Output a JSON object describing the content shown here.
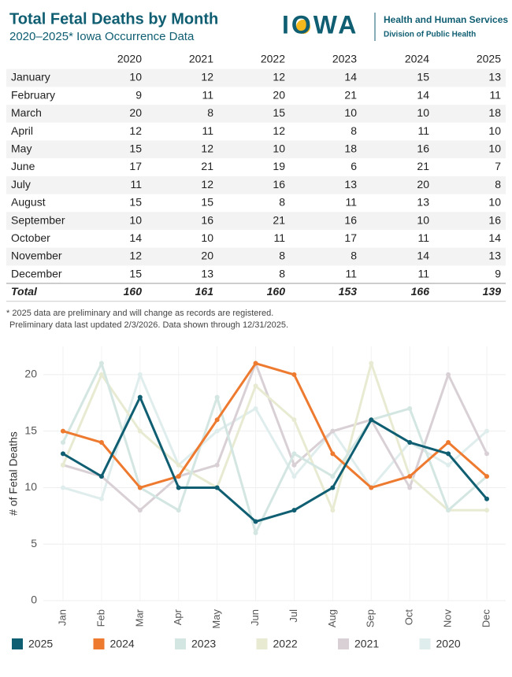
{
  "header": {
    "title": "Total Fetal Deaths by Month",
    "subtitle": "2020–2025* Iowa Occurrence Data",
    "logo": "IOWA",
    "org": "Health and Human Services",
    "division": "Division of Public Health"
  },
  "table": {
    "columns": [
      "2020",
      "2021",
      "2022",
      "2023",
      "2024",
      "2025"
    ],
    "rows": [
      {
        "label": "January",
        "values": [
          10,
          12,
          12,
          14,
          15,
          13
        ]
      },
      {
        "label": "February",
        "values": [
          9,
          11,
          20,
          21,
          14,
          11
        ]
      },
      {
        "label": "March",
        "values": [
          20,
          8,
          15,
          10,
          10,
          18
        ]
      },
      {
        "label": "April",
        "values": [
          12,
          11,
          12,
          8,
          11,
          10
        ]
      },
      {
        "label": "May",
        "values": [
          15,
          12,
          10,
          18,
          16,
          10
        ]
      },
      {
        "label": "June",
        "values": [
          17,
          21,
          19,
          6,
          21,
          7
        ]
      },
      {
        "label": "July",
        "values": [
          11,
          12,
          16,
          13,
          20,
          8
        ]
      },
      {
        "label": "August",
        "values": [
          15,
          15,
          8,
          11,
          13,
          10
        ]
      },
      {
        "label": "September",
        "values": [
          10,
          16,
          21,
          16,
          10,
          16
        ]
      },
      {
        "label": "October",
        "values": [
          14,
          10,
          11,
          17,
          11,
          14
        ]
      },
      {
        "label": "November",
        "values": [
          12,
          20,
          8,
          8,
          14,
          13
        ]
      },
      {
        "label": "December",
        "values": [
          15,
          13,
          8,
          11,
          11,
          9
        ]
      }
    ],
    "total": {
      "label": "Total",
      "values": [
        160,
        161,
        160,
        153,
        166,
        139
      ]
    }
  },
  "notes": [
    "* 2025 data are preliminary and will change as records are registered.",
    "Preliminary data last updated 2/3/2026. Data shown through 12/31/2025."
  ],
  "chart_data": {
    "type": "line",
    "y_label": "# of Fetal Deaths",
    "categories": [
      "Jan",
      "Feb",
      "Mar",
      "Apr",
      "May",
      "Jun",
      "Jul",
      "Aug",
      "Sep",
      "Oct",
      "Nov",
      "Dec"
    ],
    "series": [
      {
        "name": "2025",
        "color": "#0f5e72",
        "values": [
          13,
          11,
          18,
          10,
          10,
          7,
          8,
          10,
          16,
          14,
          13,
          9
        ]
      },
      {
        "name": "2024",
        "color": "#ee7a30",
        "values": [
          15,
          14,
          10,
          11,
          16,
          21,
          20,
          13,
          10,
          11,
          14,
          11
        ]
      },
      {
        "name": "2023",
        "color": "#d3e6e1",
        "values": [
          14,
          21,
          10,
          8,
          18,
          6,
          13,
          11,
          16,
          17,
          8,
          11
        ]
      },
      {
        "name": "2022",
        "color": "#e8ebd2",
        "values": [
          12,
          20,
          15,
          12,
          10,
          19,
          16,
          8,
          21,
          11,
          8,
          8
        ]
      },
      {
        "name": "2021",
        "color": "#d8d0d5",
        "values": [
          12,
          11,
          8,
          11,
          12,
          21,
          12,
          15,
          16,
          10,
          20,
          13
        ]
      },
      {
        "name": "2020",
        "color": "#e0eded",
        "values": [
          10,
          9,
          20,
          12,
          15,
          17,
          11,
          15,
          10,
          14,
          12,
          15
        ]
      }
    ],
    "ylim": [
      0,
      22.5
    ],
    "yticks": [
      0,
      5,
      10,
      15,
      20
    ],
    "grid": true
  }
}
